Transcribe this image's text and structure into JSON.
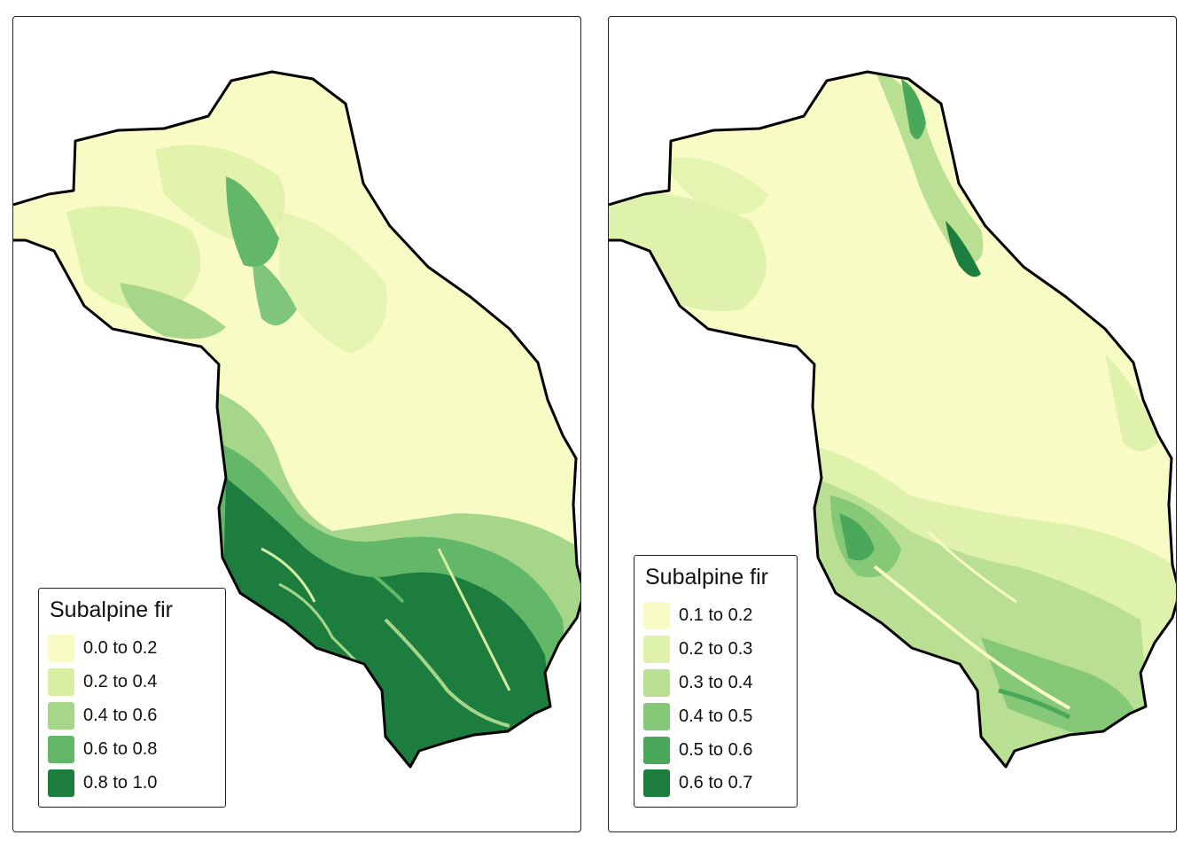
{
  "maps": [
    {
      "legend": {
        "title": "Subalpine fir",
        "items": [
          {
            "label": "0.0 to 0.2",
            "color": "#f8fcc4"
          },
          {
            "label": "0.2 to 0.4",
            "color": "#d8efa3"
          },
          {
            "label": "0.4 to 0.6",
            "color": "#a5d68a"
          },
          {
            "label": "0.6 to 0.8",
            "color": "#62b868"
          },
          {
            "label": "0.8 to 1.0",
            "color": "#1c7d3f"
          }
        ]
      }
    },
    {
      "legend": {
        "title": "Subalpine fir",
        "items": [
          {
            "label": "0.1 to 0.2",
            "color": "#f8fcc4"
          },
          {
            "label": "0.2 to 0.3",
            "color": "#dff2ab"
          },
          {
            "label": "0.3 to 0.4",
            "color": "#b8df92"
          },
          {
            "label": "0.4 to 0.5",
            "color": "#85c878"
          },
          {
            "label": "0.5 to 0.6",
            "color": "#4aa85a"
          },
          {
            "label": "0.6 to 0.7",
            "color": "#1c7d3f"
          }
        ]
      }
    }
  ]
}
